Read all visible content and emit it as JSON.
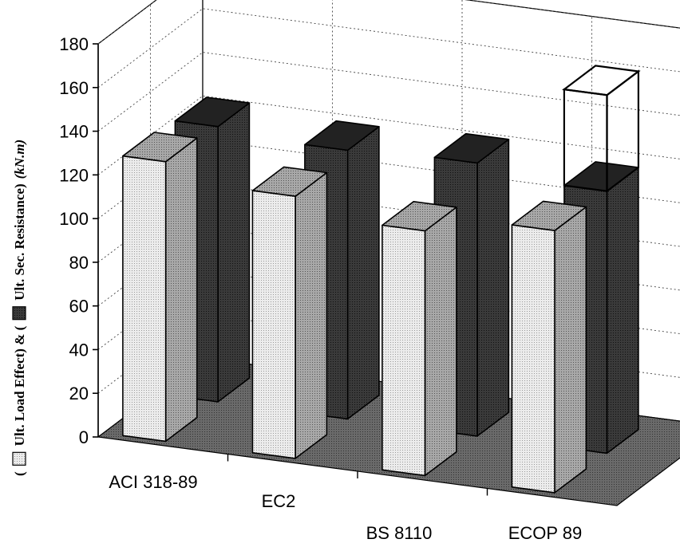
{
  "chart_data": {
    "type": "bar",
    "categories": [
      "ACI 318-89",
      "EC2",
      "BS 8110",
      "ECOP 89"
    ],
    "series": [
      {
        "name": "Ult. Load Effect",
        "values": [
          128,
          120,
          112,
          120
        ],
        "color": "#e2e2e2"
      },
      {
        "name": "Ult. Sec. Resistance",
        "values": [
          126,
          123,
          125,
          120
        ],
        "color": "#2e2e2e"
      }
    ],
    "extra_outline": {
      "category": "ECOP 89",
      "range": [
        120,
        164
      ]
    },
    "ylim": [
      0,
      180
    ],
    "yticks": [
      "0",
      "20",
      "40",
      "60",
      "80",
      "100",
      "120",
      "140",
      "160",
      "180"
    ],
    "ylabel_parts": [
      "(",
      "Ult. Load Effect) & (",
      "Ult. Sec. Resistance)",
      "(kN.m)"
    ],
    "grid": true,
    "view": "3d"
  }
}
